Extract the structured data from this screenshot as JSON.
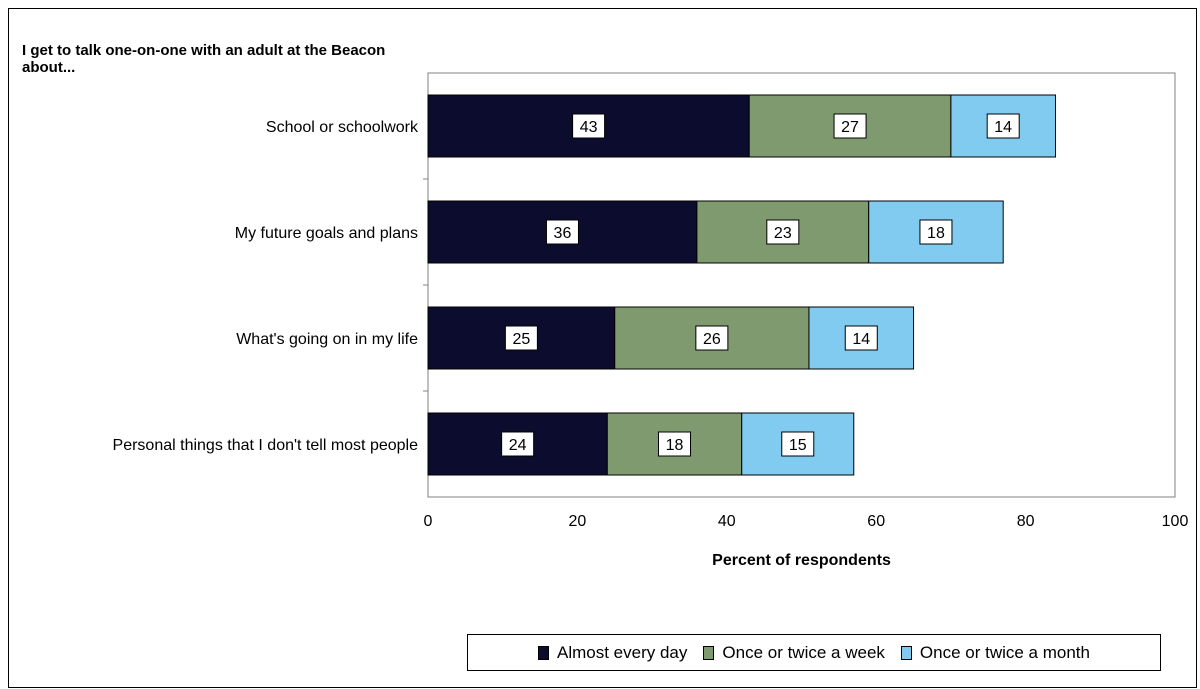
{
  "chart_data": {
    "type": "bar",
    "orientation": "horizontal",
    "stacked": true,
    "title": "I get to talk one-on-one with an adult at the Beacon about...",
    "xlabel": "Percent of respondents",
    "ylabel": "",
    "xlim": [
      0,
      100
    ],
    "xticks": [
      "0",
      "20",
      "40",
      "60",
      "80",
      "100"
    ],
    "grid": false,
    "legend_position": "bottom",
    "categories": [
      "School or schoolwork",
      "My future goals and plans",
      "What's going on in my life",
      "Personal things that I don't tell most people"
    ],
    "series": [
      {
        "name": "Almost every day",
        "color": "#0b0c2e",
        "values": [
          43,
          36,
          25,
          24
        ]
      },
      {
        "name": "Once or twice a week",
        "color": "#7f9a6e",
        "values": [
          27,
          23,
          26,
          18
        ]
      },
      {
        "name": "Once or twice a month",
        "color": "#82cbf0",
        "values": [
          14,
          18,
          14,
          15
        ]
      }
    ]
  }
}
